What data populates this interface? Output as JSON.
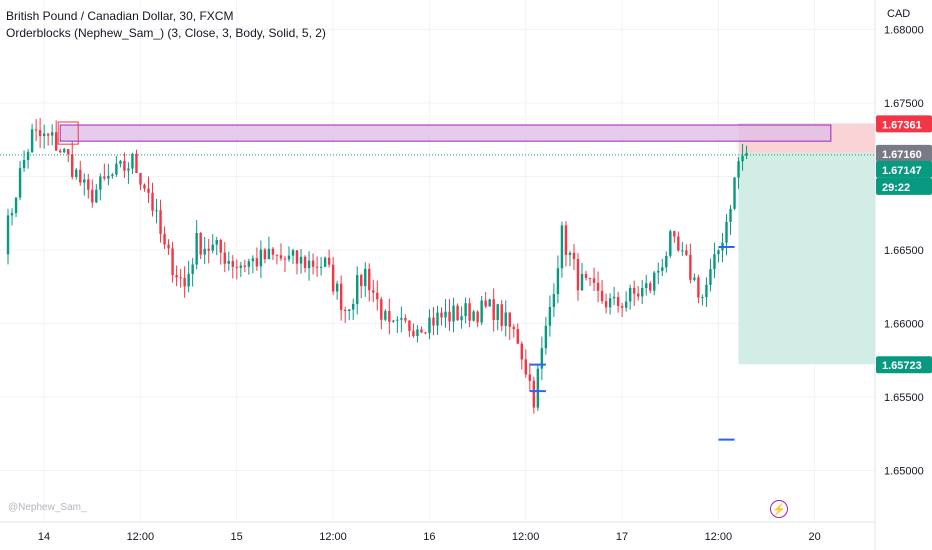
{
  "header": {
    "symbol_title": "British Pound / Canadian Dollar, 30, FXCM",
    "indicator": "Orderblocks (Nephew_Sam_) (3, Close, 3, Body, Solid, 5, 2)",
    "currency": "CAD"
  },
  "watermark": "@Nephew_Sam_",
  "icons": {
    "replay": "lightning-icon"
  },
  "colors": {
    "up": "#089981",
    "down": "#f23645",
    "orderblock_fill": "#e1bee7",
    "orderblock_border": "#9c27b0",
    "stop_zone": "#f9d3d6",
    "target_zone": "#d1ede5",
    "blue_level": "#2962ff"
  },
  "chart_data": {
    "type": "candlestick",
    "y_ticks": [
      "1.68000",
      "1.67500",
      "1.67000",
      "1.66500",
      "1.66000",
      "1.65500",
      "1.65000"
    ],
    "y_tick_values": [
      1.68,
      1.675,
      1.67,
      1.665,
      1.66,
      1.655,
      1.65
    ],
    "ylim": [
      1.6465,
      1.682
    ],
    "x_ticks": [
      "14",
      "12:00",
      "15",
      "12:00",
      "16",
      "12:00",
      "17",
      "12:00",
      "20"
    ],
    "x_range_bars": [
      0,
      216
    ],
    "price_labels": [
      {
        "value": "1.67361",
        "price": 1.67361,
        "kind": "stop"
      },
      {
        "value": "1.67160",
        "price": 1.6716,
        "kind": "entry"
      },
      {
        "value": "1.67147",
        "price": 1.67147,
        "kind": "last"
      },
      {
        "value": "29:22",
        "price": 1.67147,
        "kind": "countdown"
      },
      {
        "value": "1.65723",
        "price": 1.65723,
        "kind": "target"
      }
    ],
    "orderblock": {
      "bar_start": 14,
      "bar_end": 206,
      "top": 1.6735,
      "bottom": 1.6724
    },
    "stop_zone_level": 1.67361,
    "target_zone_level": 1.65723,
    "entry_level": 1.6716,
    "position_bar_start": 183,
    "blue_levels": [
      {
        "bar_start": 131,
        "bar_end": 135,
        "price": 1.6554
      },
      {
        "bar_start": 131,
        "bar_end": 135,
        "price": 1.6572
      },
      {
        "bar_start": 178,
        "bar_end": 182,
        "price": 1.6521
      },
      {
        "bar_start": 178,
        "bar_end": 182,
        "price": 1.6652
      }
    ],
    "anchors": [
      {
        "bar": 0,
        "price": 1.6655
      },
      {
        "bar": 4,
        "price": 1.6702
      },
      {
        "bar": 7,
        "price": 1.6728
      },
      {
        "bar": 12,
        "price": 1.6725
      },
      {
        "bar": 16,
        "price": 1.6712
      },
      {
        "bar": 21,
        "price": 1.6686
      },
      {
        "bar": 26,
        "price": 1.6698
      },
      {
        "bar": 32,
        "price": 1.671
      },
      {
        "bar": 36,
        "price": 1.669
      },
      {
        "bar": 40,
        "price": 1.665
      },
      {
        "bar": 45,
        "price": 1.6625
      },
      {
        "bar": 48,
        "price": 1.6655
      },
      {
        "bar": 53,
        "price": 1.665
      },
      {
        "bar": 58,
        "price": 1.664
      },
      {
        "bar": 66,
        "price": 1.6645
      },
      {
        "bar": 74,
        "price": 1.6642
      },
      {
        "bar": 80,
        "price": 1.664
      },
      {
        "bar": 85,
        "price": 1.661
      },
      {
        "bar": 90,
        "price": 1.6635
      },
      {
        "bar": 96,
        "price": 1.6595
      },
      {
        "bar": 103,
        "price": 1.66
      },
      {
        "bar": 110,
        "price": 1.6605
      },
      {
        "bar": 116,
        "price": 1.6608
      },
      {
        "bar": 122,
        "price": 1.661
      },
      {
        "bar": 128,
        "price": 1.659
      },
      {
        "bar": 132,
        "price": 1.655
      },
      {
        "bar": 135,
        "price": 1.6595
      },
      {
        "bar": 139,
        "price": 1.666
      },
      {
        "bar": 143,
        "price": 1.663
      },
      {
        "bar": 148,
        "price": 1.6618
      },
      {
        "bar": 152,
        "price": 1.6612
      },
      {
        "bar": 156,
        "price": 1.6618
      },
      {
        "bar": 161,
        "price": 1.6625
      },
      {
        "bar": 166,
        "price": 1.6655
      },
      {
        "bar": 170,
        "price": 1.664
      },
      {
        "bar": 174,
        "price": 1.6618
      },
      {
        "bar": 177,
        "price": 1.664
      },
      {
        "bar": 180,
        "price": 1.667
      },
      {
        "bar": 183,
        "price": 1.671
      },
      {
        "bar": 185,
        "price": 1.6716
      }
    ]
  }
}
